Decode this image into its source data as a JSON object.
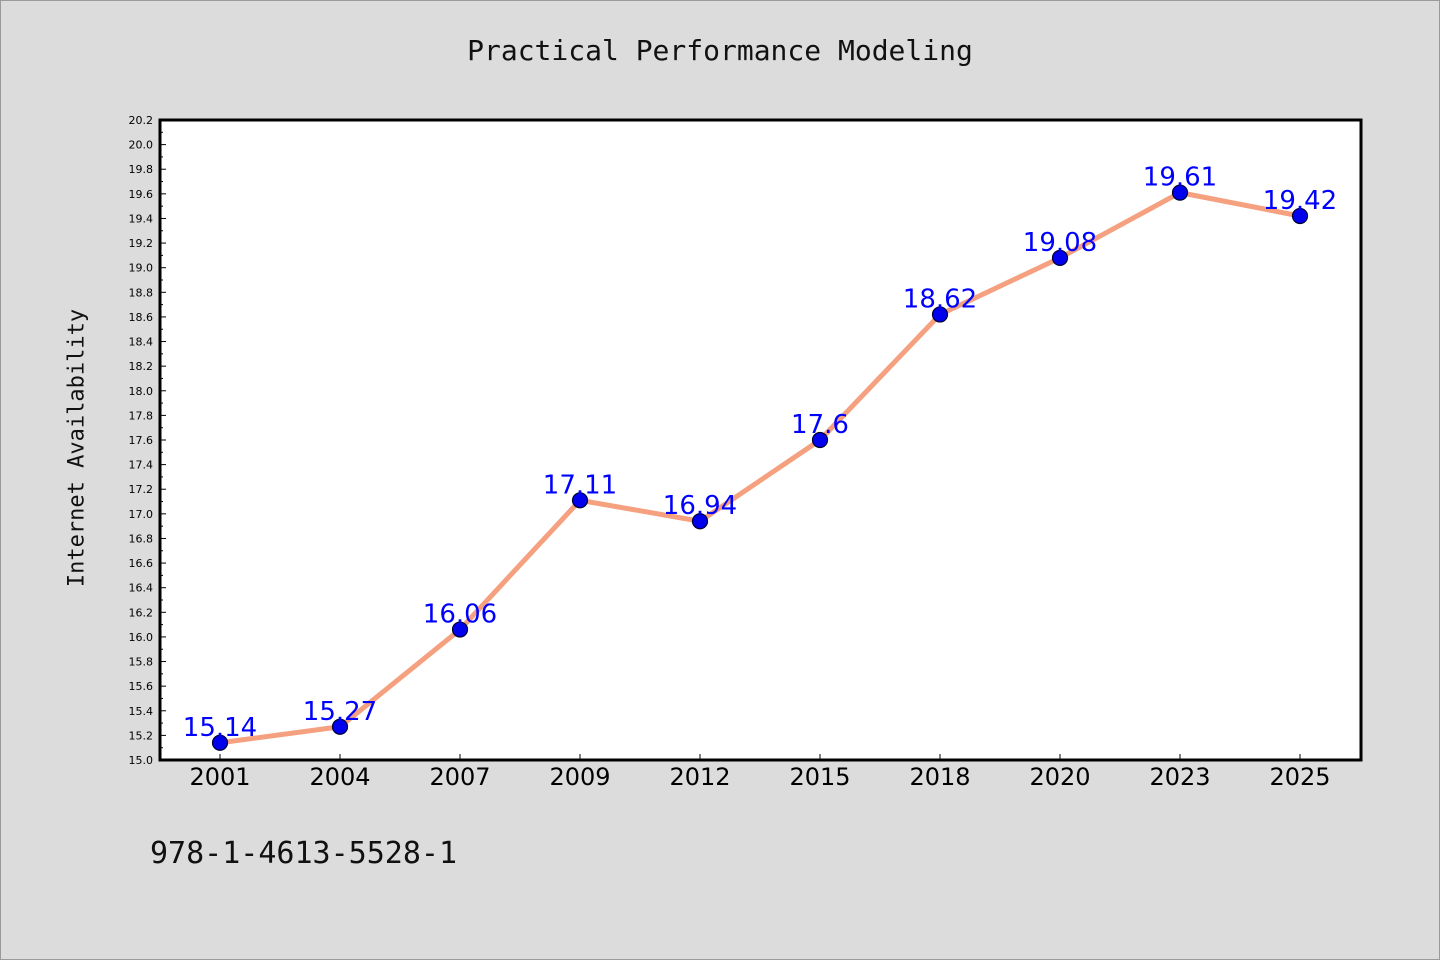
{
  "colors": {
    "background": "#dcdcdc",
    "plot_background": "#ffffff",
    "line": "#f5a07f",
    "marker": "#0000ee",
    "data_label": "#0000ff"
  },
  "footer": {
    "isbn": "978-1-4613-5528-1"
  },
  "chart_data": {
    "type": "line",
    "title": "Practical Performance Modeling",
    "xlabel": "",
    "ylabel": "Internet Availability",
    "categories": [
      "2001",
      "2004",
      "2007",
      "2009",
      "2012",
      "2015",
      "2018",
      "2020",
      "2023",
      "2025"
    ],
    "series": [
      {
        "values": [
          15.14,
          15.27,
          16.06,
          17.11,
          16.94,
          17.6,
          18.62,
          19.08,
          19.61,
          19.42
        ],
        "labels": [
          "15.14",
          "15.27",
          "16.06",
          "17.11",
          "16.94",
          "17.6",
          "18.62",
          "19.08",
          "19.61",
          "19.42"
        ]
      }
    ],
    "ylim": [
      15.0,
      20.2
    ],
    "yticks": [
      "15.0",
      "15.2",
      "15.4",
      "15.6",
      "15.8",
      "16.0",
      "16.2",
      "16.4",
      "16.6",
      "16.8",
      "17.0",
      "17.2",
      "17.4",
      "17.6",
      "17.8",
      "18.0",
      "18.2",
      "18.4",
      "18.6",
      "18.8",
      "19.0",
      "19.2",
      "19.4",
      "19.6",
      "19.8",
      "20.0",
      "20.2"
    ],
    "grid": false,
    "legend": "none"
  }
}
